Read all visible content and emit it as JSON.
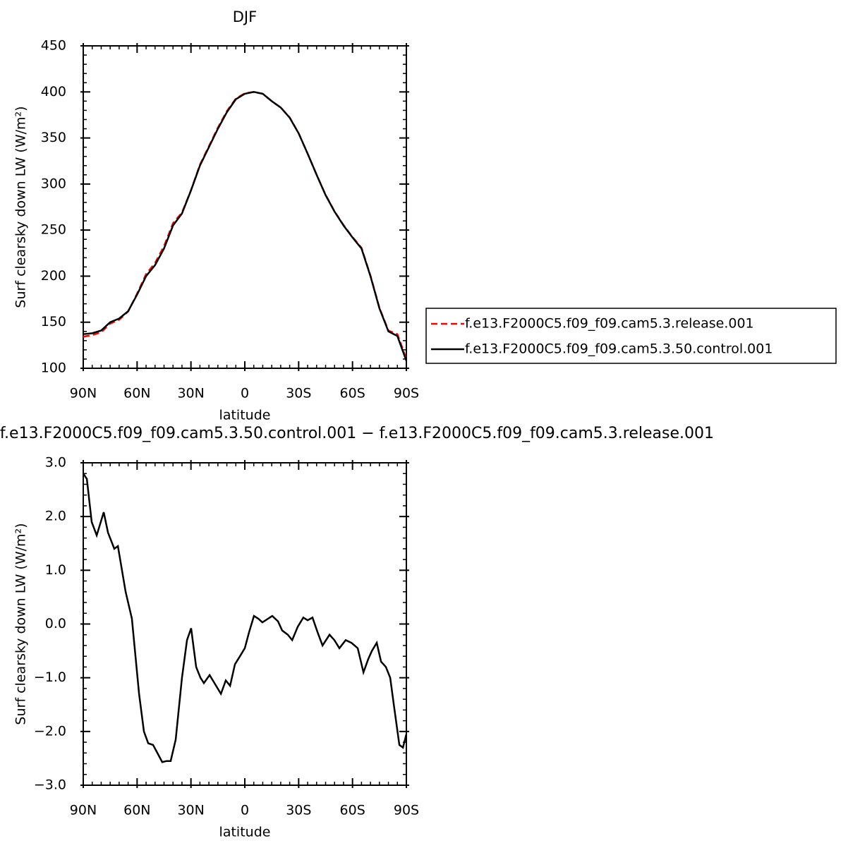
{
  "chart_data": [
    {
      "type": "line",
      "title": "DJF",
      "x_label": "latitude",
      "y_label": "Surf clearsky down LW (W/m²)",
      "x": [
        90,
        85,
        80,
        75,
        70,
        65,
        60,
        55,
        50,
        45,
        40,
        35,
        30,
        25,
        20,
        15,
        10,
        5,
        0,
        -5,
        -10,
        -15,
        -20,
        -25,
        -30,
        -35,
        -40,
        -45,
        -50,
        -55,
        -60,
        -65,
        -70,
        -75,
        -80,
        -85,
        -90
      ],
      "xlim": [
        90,
        -90
      ],
      "xticks": [
        {
          "value": 90,
          "label": "90N"
        },
        {
          "value": 60,
          "label": "60N"
        },
        {
          "value": 30,
          "label": "30N"
        },
        0,
        {
          "value": -30,
          "label": "30S"
        },
        {
          "value": -60,
          "label": "60S"
        },
        {
          "value": -90,
          "label": "90S"
        }
      ],
      "ylim": [
        100,
        450
      ],
      "yticks": [
        100,
        150,
        200,
        250,
        300,
        350,
        400,
        450
      ],
      "legend": "right",
      "series": [
        {
          "name": "f.e13.F2000C5.f09_f09.cam5.3.release.001",
          "color": "#ff0000",
          "dashed": true,
          "values": [
            134.2,
            136.1,
            139.1,
            148.5,
            152.7,
            161.6,
            181.0,
            202.2,
            214.3,
            232.6,
            257.5,
            269.0,
            293.1,
            321.0,
            341.0,
            361.2,
            379.1,
            392.7,
            398.5,
            399.9,
            398.0,
            389.9,
            383.1,
            372.3,
            355.1,
            332.9,
            310.1,
            288.3,
            270.3,
            255.4,
            242.4,
            230.8,
            200.6,
            165.6,
            140.9,
            137.0,
            110.1
          ]
        },
        {
          "name": "f.e13.F2000C5.f09_f09.cam5.3.50.control.001",
          "color": "#000000",
          "dashed": false,
          "values": [
            137,
            138,
            141,
            150,
            154,
            162,
            180,
            200,
            212,
            230,
            255,
            268,
            293,
            320,
            340,
            360,
            378,
            392,
            398,
            400,
            398,
            390,
            383,
            372,
            355,
            333,
            310,
            288,
            270,
            255,
            242,
            230,
            200,
            165,
            140,
            135,
            108
          ]
        }
      ]
    },
    {
      "type": "line",
      "title": "f.e13.F2000C5.f09_f09.cam5.3.50.control.001 − f.e13.F2000C5.f09_f09.cam5.3.release.001",
      "x_label": "latitude",
      "y_label": "Surf clearsky down LW (W/m²)",
      "x": [
        90,
        88,
        85.3,
        82.5,
        78.6,
        76.2,
        72.7,
        70.7,
        66.4,
        62.9,
        58.9,
        56.2,
        53.8,
        51.1,
        47.9,
        46,
        43.6,
        41.3,
        38.5,
        35,
        32.2,
        29.9,
        27.1,
        24.7,
        22.8,
        19.6,
        16.9,
        13.3,
        10.6,
        8.2,
        5.5,
        2.7,
        0,
        -2.4,
        -5.1,
        -7.5,
        -9.8,
        -13,
        -15.3,
        -18.5,
        -20.8,
        -24,
        -26.4,
        -29.5,
        -32.6,
        -35,
        -37.7,
        -40.5,
        -43.3,
        -47.2,
        -49.9,
        -52.7,
        -56.2,
        -59.4,
        -62.9,
        -66.1,
        -68.8,
        -70.8,
        -73.5,
        -75.9,
        -78.6,
        -81,
        -83,
        -86.1,
        -88.1,
        -90
      ],
      "xlim": [
        90,
        -90
      ],
      "xticks": [
        {
          "value": 90,
          "label": "90N"
        },
        {
          "value": 60,
          "label": "60N"
        },
        {
          "value": 30,
          "label": "30N"
        },
        0,
        {
          "value": -30,
          "label": "30S"
        },
        {
          "value": -60,
          "label": "60S"
        },
        {
          "value": -90,
          "label": "90S"
        }
      ],
      "ylim": [
        -3,
        3
      ],
      "yticks": [
        {
          "value": -3,
          "label": "−3.0"
        },
        {
          "value": -2,
          "label": "−2.0"
        },
        {
          "value": -1,
          "label": "−1.0"
        },
        {
          "value": 0,
          "label": "0.0"
        },
        {
          "value": 1,
          "label": "1.0"
        },
        {
          "value": 2,
          "label": "2.0"
        },
        {
          "value": 3,
          "label": "3.0"
        }
      ],
      "series": [
        {
          "color": "#000000",
          "dashed": false,
          "values": [
            2.8,
            2.7,
            1.9,
            1.65,
            2.08,
            1.7,
            1.4,
            1.45,
            0.6,
            0.1,
            -1.3,
            -2.0,
            -2.22,
            -2.25,
            -2.45,
            -2.57,
            -2.55,
            -2.55,
            -2.15,
            -1.0,
            -0.3,
            -0.08,
            -0.8,
            -1.0,
            -1.1,
            -0.95,
            -1.1,
            -1.3,
            -1.05,
            -1.15,
            -0.75,
            -0.6,
            -0.45,
            -0.15,
            0.15,
            0.1,
            0.03,
            0.1,
            0.15,
            0.05,
            -0.12,
            -0.2,
            -0.3,
            -0.05,
            0.12,
            0.07,
            0.12,
            -0.15,
            -0.4,
            -0.2,
            -0.3,
            -0.45,
            -0.3,
            -0.35,
            -0.45,
            -0.9,
            -0.65,
            -0.5,
            -0.35,
            -0.7,
            -0.8,
            -1.0,
            -1.5,
            -2.25,
            -2.3,
            -2.05
          ]
        }
      ]
    }
  ]
}
